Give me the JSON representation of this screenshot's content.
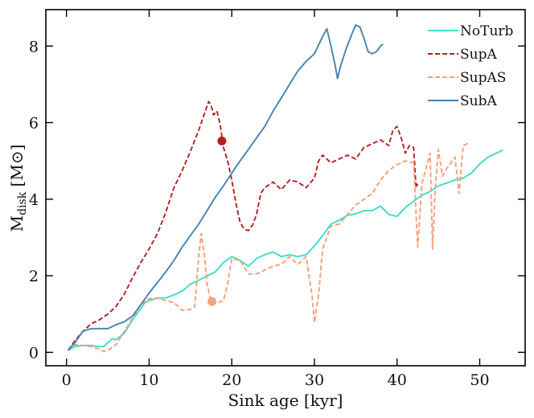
{
  "chart_data": {
    "type": "line",
    "title": "",
    "xlabel": "Sink age [kyr]",
    "ylabel_main": "M",
    "ylabel_sub": "disk",
    "ylabel_unit": " [M⊙]",
    "xlim": [
      -2.5,
      55.5
    ],
    "ylim": [
      -0.35,
      8.95
    ],
    "xticks": [
      0,
      10,
      20,
      30,
      40,
      50
    ],
    "yticks": [
      0,
      2,
      4,
      6,
      8
    ],
    "grid": false,
    "legend_position": "top-right",
    "series": [
      {
        "name": "NoTurb",
        "color": "#3fdccc",
        "dash": "solid",
        "points": [
          [
            0.2,
            0.05
          ],
          [
            1,
            0.15
          ],
          [
            2,
            0.18
          ],
          [
            3,
            0.18
          ],
          [
            4,
            0.15
          ],
          [
            4.5,
            0.15
          ],
          [
            5,
            0.25
          ],
          [
            5.5,
            0.35
          ],
          [
            6,
            0.33
          ],
          [
            7,
            0.5
          ],
          [
            8,
            0.85
          ],
          [
            9,
            1.15
          ],
          [
            9.5,
            1.3
          ],
          [
            10,
            1.35
          ],
          [
            11,
            1.42
          ],
          [
            12,
            1.42
          ],
          [
            13,
            1.5
          ],
          [
            14,
            1.6
          ],
          [
            15,
            1.78
          ],
          [
            16,
            1.88
          ],
          [
            17,
            2.0
          ],
          [
            18,
            2.1
          ],
          [
            19,
            2.35
          ],
          [
            20,
            2.5
          ],
          [
            21,
            2.4
          ],
          [
            22,
            2.25
          ],
          [
            23,
            2.45
          ],
          [
            24,
            2.55
          ],
          [
            25,
            2.62
          ],
          [
            26,
            2.5
          ],
          [
            27,
            2.55
          ],
          [
            28,
            2.5
          ],
          [
            29,
            2.55
          ],
          [
            30,
            2.78
          ],
          [
            31,
            3.05
          ],
          [
            32,
            3.35
          ],
          [
            33,
            3.45
          ],
          [
            34,
            3.58
          ],
          [
            35,
            3.62
          ],
          [
            36,
            3.7
          ],
          [
            37,
            3.7
          ],
          [
            38,
            3.82
          ],
          [
            39,
            3.6
          ],
          [
            40,
            3.55
          ],
          [
            41,
            3.78
          ],
          [
            42,
            3.95
          ],
          [
            43,
            4.1
          ],
          [
            44,
            4.2
          ],
          [
            45,
            4.35
          ],
          [
            46,
            4.42
          ],
          [
            47,
            4.5
          ],
          [
            48,
            4.55
          ],
          [
            49,
            4.68
          ],
          [
            50,
            4.92
          ],
          [
            51,
            5.1
          ],
          [
            52,
            5.2
          ],
          [
            52.8,
            5.28
          ]
        ]
      },
      {
        "name": "SupA",
        "color": "#b22222",
        "dash": "dashed",
        "points": [
          [
            0.2,
            0.05
          ],
          [
            1,
            0.3
          ],
          [
            2,
            0.55
          ],
          [
            3,
            0.75
          ],
          [
            4,
            0.85
          ],
          [
            5,
            1.0
          ],
          [
            6,
            1.2
          ],
          [
            7,
            1.52
          ],
          [
            8,
            1.95
          ],
          [
            9,
            2.35
          ],
          [
            10,
            2.7
          ],
          [
            11,
            3.1
          ],
          [
            12,
            3.65
          ],
          [
            13,
            4.3
          ],
          [
            14,
            4.75
          ],
          [
            15,
            5.25
          ],
          [
            16,
            5.8
          ],
          [
            16.8,
            6.3
          ],
          [
            17.2,
            6.55
          ],
          [
            17.5,
            6.45
          ],
          [
            17.8,
            6.2
          ],
          [
            18.2,
            6.3
          ],
          [
            18.6,
            5.95
          ],
          [
            19,
            5.35
          ],
          [
            19.5,
            5.0
          ],
          [
            20,
            4.5
          ],
          [
            20.5,
            3.9
          ],
          [
            21,
            3.4
          ],
          [
            21.5,
            3.22
          ],
          [
            22,
            3.18
          ],
          [
            22.5,
            3.32
          ],
          [
            23,
            3.6
          ],
          [
            23.5,
            4.15
          ],
          [
            24,
            4.3
          ],
          [
            25,
            4.45
          ],
          [
            26,
            4.25
          ],
          [
            27,
            4.5
          ],
          [
            28,
            4.45
          ],
          [
            29,
            4.3
          ],
          [
            30,
            4.55
          ],
          [
            30.5,
            5.0
          ],
          [
            31,
            5.15
          ],
          [
            32,
            4.95
          ],
          [
            33,
            5.05
          ],
          [
            34,
            5.15
          ],
          [
            35,
            5.05
          ],
          [
            36,
            5.35
          ],
          [
            37,
            5.45
          ],
          [
            38,
            5.55
          ],
          [
            39,
            5.4
          ],
          [
            39.5,
            5.8
          ],
          [
            40,
            5.9
          ],
          [
            40.5,
            5.6
          ],
          [
            41,
            5.2
          ],
          [
            41.5,
            5.4
          ],
          [
            42,
            5.35
          ],
          [
            42.3,
            4.3
          ],
          [
            42.5,
            4.4
          ]
        ]
      },
      {
        "name": "SupAS",
        "color": "#f4a07c",
        "dash": "dashed",
        "points": [
          [
            0.2,
            0.05
          ],
          [
            1,
            0.2
          ],
          [
            2,
            0.18
          ],
          [
            3,
            0.15
          ],
          [
            4,
            0.08
          ],
          [
            4.5,
            0.02
          ],
          [
            5,
            0.05
          ],
          [
            6,
            0.2
          ],
          [
            7,
            0.55
          ],
          [
            8,
            0.9
          ],
          [
            9,
            1.25
          ],
          [
            10,
            1.4
          ],
          [
            11,
            1.42
          ],
          [
            12,
            1.35
          ],
          [
            13,
            1.3
          ],
          [
            14,
            1.1
          ],
          [
            15,
            1.12
          ],
          [
            15.5,
            1.18
          ],
          [
            16,
            2.5
          ],
          [
            16.3,
            3.1
          ],
          [
            16.7,
            2.5
          ],
          [
            17,
            1.8
          ],
          [
            17.5,
            1.3
          ],
          [
            18,
            1.28
          ],
          [
            19,
            1.35
          ],
          [
            19.5,
            1.8
          ],
          [
            20,
            2.45
          ],
          [
            21,
            2.4
          ],
          [
            22,
            2.05
          ],
          [
            23,
            2.05
          ],
          [
            24,
            2.15
          ],
          [
            25,
            2.25
          ],
          [
            26,
            2.3
          ],
          [
            27,
            2.5
          ],
          [
            28,
            2.3
          ],
          [
            29,
            2.5
          ],
          [
            29.7,
            1.5
          ],
          [
            30,
            0.78
          ],
          [
            30.5,
            1.5
          ],
          [
            31,
            2.7
          ],
          [
            32,
            3.3
          ],
          [
            33,
            3.35
          ],
          [
            34,
            3.6
          ],
          [
            35,
            3.85
          ],
          [
            36,
            4.0
          ],
          [
            37,
            4.15
          ],
          [
            38,
            4.5
          ],
          [
            39,
            4.75
          ],
          [
            40,
            4.9
          ],
          [
            41,
            5.0
          ],
          [
            42,
            4.95
          ],
          [
            42.5,
            2.75
          ],
          [
            43,
            4.4
          ],
          [
            44,
            5.2
          ],
          [
            44.3,
            2.7
          ],
          [
            44.6,
            4.2
          ],
          [
            45,
            5.3
          ],
          [
            45.5,
            4.6
          ],
          [
            46,
            4.8
          ],
          [
            47,
            5.1
          ],
          [
            47.5,
            4.15
          ],
          [
            48,
            5.4
          ],
          [
            48.5,
            5.45
          ],
          [
            48.8,
            5.42
          ]
        ]
      },
      {
        "name": "SubA",
        "color": "#4682b4",
        "dash": "solid",
        "points": [
          [
            0.2,
            0.05
          ],
          [
            1,
            0.25
          ],
          [
            2,
            0.55
          ],
          [
            3,
            0.62
          ],
          [
            4,
            0.62
          ],
          [
            5,
            0.62
          ],
          [
            6,
            0.72
          ],
          [
            7,
            0.8
          ],
          [
            8,
            0.95
          ],
          [
            9,
            1.25
          ],
          [
            10,
            1.55
          ],
          [
            11,
            1.82
          ],
          [
            12,
            2.1
          ],
          [
            13,
            2.4
          ],
          [
            14,
            2.75
          ],
          [
            15,
            3.05
          ],
          [
            16,
            3.35
          ],
          [
            17,
            3.7
          ],
          [
            18,
            4.05
          ],
          [
            19,
            4.35
          ],
          [
            20,
            4.68
          ],
          [
            21,
            5.0
          ],
          [
            22,
            5.3
          ],
          [
            23,
            5.6
          ],
          [
            24,
            5.9
          ],
          [
            25,
            6.3
          ],
          [
            26,
            6.65
          ],
          [
            27,
            7.0
          ],
          [
            28,
            7.35
          ],
          [
            29,
            7.6
          ],
          [
            30,
            7.8
          ],
          [
            31,
            8.25
          ],
          [
            31.5,
            8.45
          ],
          [
            32,
            8.0
          ],
          [
            32.5,
            7.5
          ],
          [
            32.8,
            7.15
          ],
          [
            33.2,
            7.5
          ],
          [
            33.8,
            7.9
          ],
          [
            34.5,
            8.3
          ],
          [
            35,
            8.55
          ],
          [
            35.5,
            8.5
          ],
          [
            36,
            8.2
          ],
          [
            36.5,
            7.85
          ],
          [
            37,
            7.8
          ],
          [
            37.5,
            7.85
          ],
          [
            38,
            8.0
          ],
          [
            38.3,
            8.05
          ]
        ]
      }
    ],
    "markers": [
      {
        "series": "SupA",
        "x": 18.8,
        "y": 5.52,
        "color": "#b22222"
      },
      {
        "series": "SupAS",
        "x": 17.6,
        "y": 1.33,
        "color": "#f4a07c"
      }
    ]
  }
}
